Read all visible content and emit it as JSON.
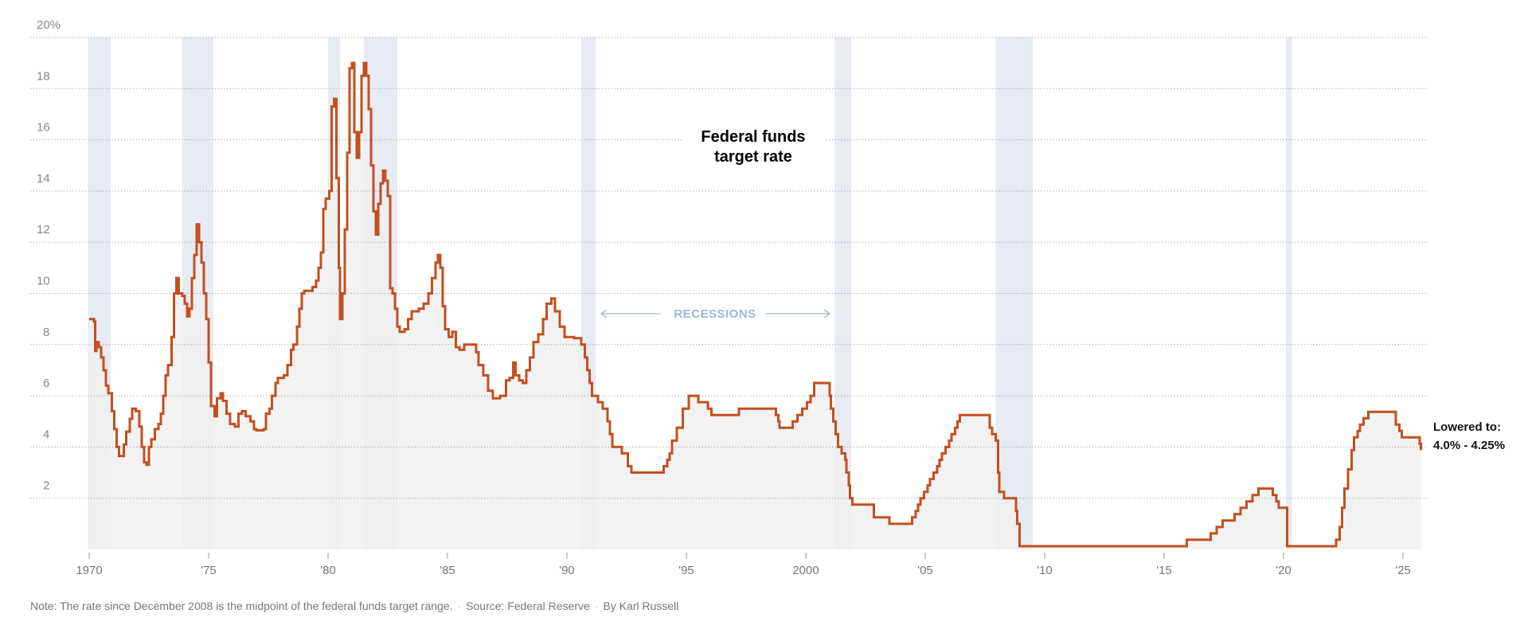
{
  "chart_data": {
    "type": "line",
    "title": "Federal funds target rate",
    "ylabel": "",
    "xlabel": "",
    "ylim": [
      0,
      20
    ],
    "xlim": [
      1970,
      2025.9
    ],
    "y_ticks": [
      {
        "value": 20,
        "label": "20%"
      },
      {
        "value": 18,
        "label": "18"
      },
      {
        "value": 16,
        "label": "16"
      },
      {
        "value": 14,
        "label": "14"
      },
      {
        "value": 12,
        "label": "12"
      },
      {
        "value": 10,
        "label": "10"
      },
      {
        "value": 8,
        "label": "8"
      },
      {
        "value": 6,
        "label": "6"
      },
      {
        "value": 4,
        "label": "4"
      },
      {
        "value": 2,
        "label": "2"
      }
    ],
    "x_ticks": [
      {
        "value": 1970,
        "label": "1970"
      },
      {
        "value": 1975,
        "label": "'75"
      },
      {
        "value": 1980,
        "label": "'80"
      },
      {
        "value": 1985,
        "label": "'85"
      },
      {
        "value": 1990,
        "label": "'90"
      },
      {
        "value": 1995,
        "label": "'95"
      },
      {
        "value": 2000,
        "label": "2000"
      },
      {
        "value": 2005,
        "label": "'05"
      },
      {
        "value": 2010,
        "label": "'10"
      },
      {
        "value": 2015,
        "label": "'15"
      },
      {
        "value": 2020,
        "label": "'20"
      },
      {
        "value": 2025,
        "label": "'25"
      }
    ],
    "grid": true,
    "recessions": [
      [
        1969.95,
        1970.9
      ],
      [
        1973.9,
        1975.2
      ],
      [
        1980.0,
        1980.5
      ],
      [
        1981.5,
        1982.9
      ],
      [
        1990.6,
        1991.2
      ],
      [
        2001.2,
        2001.9
      ],
      [
        2007.95,
        2009.5
      ],
      [
        2020.1,
        2020.35
      ]
    ],
    "recessions_label": "RECESSIONS",
    "annotation": {
      "line1": "Lowered to:",
      "line2": "4.0% - 4.25%"
    },
    "series": [
      {
        "name": "Federal funds target rate",
        "color": "#c2501f",
        "points": [
          [
            1970.0,
            9.0
          ],
          [
            1970.2,
            8.9
          ],
          [
            1970.25,
            7.75
          ],
          [
            1970.3,
            8.1
          ],
          [
            1970.4,
            7.9
          ],
          [
            1970.5,
            7.5
          ],
          [
            1970.6,
            7.0
          ],
          [
            1970.7,
            6.4
          ],
          [
            1970.8,
            6.1
          ],
          [
            1970.95,
            5.4
          ],
          [
            1971.05,
            4.7
          ],
          [
            1971.15,
            4.0
          ],
          [
            1971.25,
            3.65
          ],
          [
            1971.45,
            4.1
          ],
          [
            1971.55,
            4.6
          ],
          [
            1971.7,
            5.1
          ],
          [
            1971.8,
            5.5
          ],
          [
            1971.95,
            5.4
          ],
          [
            1972.1,
            4.8
          ],
          [
            1972.2,
            4.0
          ],
          [
            1972.3,
            3.4
          ],
          [
            1972.4,
            3.3
          ],
          [
            1972.5,
            4.0
          ],
          [
            1972.6,
            4.3
          ],
          [
            1972.75,
            4.7
          ],
          [
            1972.9,
            4.9
          ],
          [
            1973.0,
            5.3
          ],
          [
            1973.1,
            6.0
          ],
          [
            1973.2,
            6.8
          ],
          [
            1973.3,
            7.2
          ],
          [
            1973.45,
            8.3
          ],
          [
            1973.55,
            10.0
          ],
          [
            1973.65,
            10.6
          ],
          [
            1973.75,
            10.0
          ],
          [
            1973.9,
            9.9
          ],
          [
            1974.0,
            9.6
          ],
          [
            1974.1,
            9.1
          ],
          [
            1974.2,
            9.4
          ],
          [
            1974.3,
            10.6
          ],
          [
            1974.4,
            11.5
          ],
          [
            1974.5,
            12.7
          ],
          [
            1974.6,
            12.0
          ],
          [
            1974.7,
            11.2
          ],
          [
            1974.8,
            10.0
          ],
          [
            1974.9,
            9.0
          ],
          [
            1975.0,
            7.3
          ],
          [
            1975.1,
            5.6
          ],
          [
            1975.25,
            5.2
          ],
          [
            1975.35,
            5.9
          ],
          [
            1975.5,
            6.1
          ],
          [
            1975.6,
            5.8
          ],
          [
            1975.75,
            5.3
          ],
          [
            1975.9,
            4.9
          ],
          [
            1976.1,
            4.8
          ],
          [
            1976.25,
            5.3
          ],
          [
            1976.4,
            5.4
          ],
          [
            1976.55,
            5.2
          ],
          [
            1976.75,
            5.0
          ],
          [
            1976.9,
            4.7
          ],
          [
            1977.0,
            4.65
          ],
          [
            1977.3,
            4.7
          ],
          [
            1977.4,
            5.3
          ],
          [
            1977.55,
            5.5
          ],
          [
            1977.65,
            6.0
          ],
          [
            1977.8,
            6.5
          ],
          [
            1977.9,
            6.7
          ],
          [
            1978.0,
            6.7
          ],
          [
            1978.15,
            6.8
          ],
          [
            1978.3,
            7.2
          ],
          [
            1978.45,
            7.8
          ],
          [
            1978.55,
            8.0
          ],
          [
            1978.7,
            8.7
          ],
          [
            1978.8,
            9.4
          ],
          [
            1978.9,
            10.0
          ],
          [
            1979.0,
            10.1
          ],
          [
            1979.2,
            10.1
          ],
          [
            1979.35,
            10.25
          ],
          [
            1979.5,
            10.5
          ],
          [
            1979.6,
            11.0
          ],
          [
            1979.7,
            11.6
          ],
          [
            1979.8,
            13.3
          ],
          [
            1979.9,
            13.7
          ],
          [
            1980.05,
            14.0
          ],
          [
            1980.15,
            17.3
          ],
          [
            1980.25,
            17.6
          ],
          [
            1980.35,
            14.5
          ],
          [
            1980.45,
            11.0
          ],
          [
            1980.5,
            9.0
          ],
          [
            1980.6,
            10.0
          ],
          [
            1980.7,
            12.5
          ],
          [
            1980.8,
            15.5
          ],
          [
            1980.9,
            18.8
          ],
          [
            1981.0,
            19.0
          ],
          [
            1981.1,
            16.3
          ],
          [
            1981.2,
            15.3
          ],
          [
            1981.3,
            16.3
          ],
          [
            1981.4,
            18.5
          ],
          [
            1981.5,
            19.0
          ],
          [
            1981.6,
            18.5
          ],
          [
            1981.7,
            17.2
          ],
          [
            1981.8,
            15.0
          ],
          [
            1981.9,
            13.2
          ],
          [
            1982.0,
            12.3
          ],
          [
            1982.1,
            13.5
          ],
          [
            1982.2,
            14.3
          ],
          [
            1982.3,
            14.8
          ],
          [
            1982.4,
            14.4
          ],
          [
            1982.5,
            13.8
          ],
          [
            1982.6,
            10.2
          ],
          [
            1982.7,
            10.0
          ],
          [
            1982.8,
            9.4
          ],
          [
            1982.9,
            8.7
          ],
          [
            1983.0,
            8.5
          ],
          [
            1983.2,
            8.6
          ],
          [
            1983.35,
            9.0
          ],
          [
            1983.5,
            9.3
          ],
          [
            1983.65,
            9.3
          ],
          [
            1983.8,
            9.4
          ],
          [
            1984.0,
            9.6
          ],
          [
            1984.2,
            10.0
          ],
          [
            1984.35,
            10.6
          ],
          [
            1984.5,
            11.2
          ],
          [
            1984.6,
            11.5
          ],
          [
            1984.7,
            11.0
          ],
          [
            1984.8,
            9.5
          ],
          [
            1984.9,
            8.6
          ],
          [
            1985.05,
            8.3
          ],
          [
            1985.2,
            8.5
          ],
          [
            1985.35,
            7.9
          ],
          [
            1985.5,
            7.8
          ],
          [
            1985.7,
            8.0
          ],
          [
            1986.0,
            8.0
          ],
          [
            1986.2,
            7.7
          ],
          [
            1986.3,
            7.2
          ],
          [
            1986.5,
            6.8
          ],
          [
            1986.7,
            6.2
          ],
          [
            1986.9,
            5.9
          ],
          [
            1987.2,
            6.0
          ],
          [
            1987.45,
            6.6
          ],
          [
            1987.6,
            6.7
          ],
          [
            1987.75,
            7.3
          ],
          [
            1987.85,
            6.8
          ],
          [
            1988.0,
            6.6
          ],
          [
            1988.15,
            6.5
          ],
          [
            1988.3,
            7.0
          ],
          [
            1988.45,
            7.5
          ],
          [
            1988.6,
            8.1
          ],
          [
            1988.8,
            8.4
          ],
          [
            1989.0,
            9.0
          ],
          [
            1989.15,
            9.6
          ],
          [
            1989.35,
            9.8
          ],
          [
            1989.5,
            9.3
          ],
          [
            1989.7,
            8.7
          ],
          [
            1989.9,
            8.3
          ],
          [
            1990.3,
            8.25
          ],
          [
            1990.6,
            8.0
          ],
          [
            1990.75,
            7.5
          ],
          [
            1990.85,
            7.0
          ],
          [
            1990.95,
            6.5
          ],
          [
            1991.05,
            6.0
          ],
          [
            1991.3,
            5.75
          ],
          [
            1991.5,
            5.5
          ],
          [
            1991.7,
            5.0
          ],
          [
            1991.8,
            4.5
          ],
          [
            1991.9,
            4.0
          ],
          [
            1992.3,
            3.75
          ],
          [
            1992.55,
            3.25
          ],
          [
            1992.7,
            3.0
          ],
          [
            1994.05,
            3.25
          ],
          [
            1994.2,
            3.5
          ],
          [
            1994.3,
            3.75
          ],
          [
            1994.4,
            4.25
          ],
          [
            1994.6,
            4.75
          ],
          [
            1994.85,
            5.5
          ],
          [
            1995.1,
            6.0
          ],
          [
            1995.5,
            5.75
          ],
          [
            1995.9,
            5.5
          ],
          [
            1996.05,
            5.25
          ],
          [
            1997.2,
            5.5
          ],
          [
            1998.75,
            5.25
          ],
          [
            1998.85,
            5.0
          ],
          [
            1998.9,
            4.75
          ],
          [
            1999.45,
            5.0
          ],
          [
            1999.65,
            5.25
          ],
          [
            1999.85,
            5.5
          ],
          [
            2000.05,
            5.75
          ],
          [
            2000.2,
            6.0
          ],
          [
            2000.35,
            6.5
          ],
          [
            2001.0,
            6.0
          ],
          [
            2001.05,
            5.5
          ],
          [
            2001.15,
            5.0
          ],
          [
            2001.25,
            4.5
          ],
          [
            2001.35,
            4.0
          ],
          [
            2001.5,
            3.75
          ],
          [
            2001.65,
            3.5
          ],
          [
            2001.7,
            3.0
          ],
          [
            2001.8,
            2.5
          ],
          [
            2001.85,
            2.0
          ],
          [
            2001.95,
            1.75
          ],
          [
            2002.85,
            1.25
          ],
          [
            2003.5,
            1.0
          ],
          [
            2004.45,
            1.25
          ],
          [
            2004.6,
            1.5
          ],
          [
            2004.7,
            1.75
          ],
          [
            2004.8,
            2.0
          ],
          [
            2004.95,
            2.25
          ],
          [
            2005.1,
            2.5
          ],
          [
            2005.2,
            2.75
          ],
          [
            2005.35,
            3.0
          ],
          [
            2005.5,
            3.25
          ],
          [
            2005.6,
            3.5
          ],
          [
            2005.7,
            3.75
          ],
          [
            2005.85,
            4.0
          ],
          [
            2006.0,
            4.25
          ],
          [
            2006.1,
            4.5
          ],
          [
            2006.25,
            4.75
          ],
          [
            2006.35,
            5.0
          ],
          [
            2006.45,
            5.25
          ],
          [
            2007.7,
            4.75
          ],
          [
            2007.8,
            4.5
          ],
          [
            2007.95,
            4.25
          ],
          [
            2008.05,
            3.0
          ],
          [
            2008.1,
            2.25
          ],
          [
            2008.3,
            2.0
          ],
          [
            2008.8,
            1.5
          ],
          [
            2008.85,
            1.0
          ],
          [
            2008.95,
            0.125
          ],
          [
            2015.95,
            0.375
          ],
          [
            2016.95,
            0.625
          ],
          [
            2017.2,
            0.875
          ],
          [
            2017.45,
            1.125
          ],
          [
            2017.95,
            1.375
          ],
          [
            2018.2,
            1.625
          ],
          [
            2018.45,
            1.875
          ],
          [
            2018.7,
            2.125
          ],
          [
            2018.95,
            2.375
          ],
          [
            2019.55,
            2.125
          ],
          [
            2019.7,
            1.875
          ],
          [
            2019.8,
            1.625
          ],
          [
            2020.15,
            0.125
          ],
          [
            2022.2,
            0.375
          ],
          [
            2022.35,
            0.875
          ],
          [
            2022.45,
            1.625
          ],
          [
            2022.55,
            2.375
          ],
          [
            2022.7,
            3.125
          ],
          [
            2022.85,
            3.875
          ],
          [
            2022.95,
            4.375
          ],
          [
            2023.1,
            4.625
          ],
          [
            2023.2,
            4.875
          ],
          [
            2023.35,
            5.125
          ],
          [
            2023.55,
            5.375
          ],
          [
            2024.7,
            4.875
          ],
          [
            2024.85,
            4.625
          ],
          [
            2024.95,
            4.375
          ],
          [
            2025.7,
            4.125
          ]
        ],
        "end": 2025.75
      }
    ]
  },
  "footer": {
    "note": "Note: The rate since December 2008 is the midpoint of the federal funds target range.",
    "sep": "·",
    "source": "Source: Federal Reserve",
    "byline": "By Karl Russell"
  }
}
